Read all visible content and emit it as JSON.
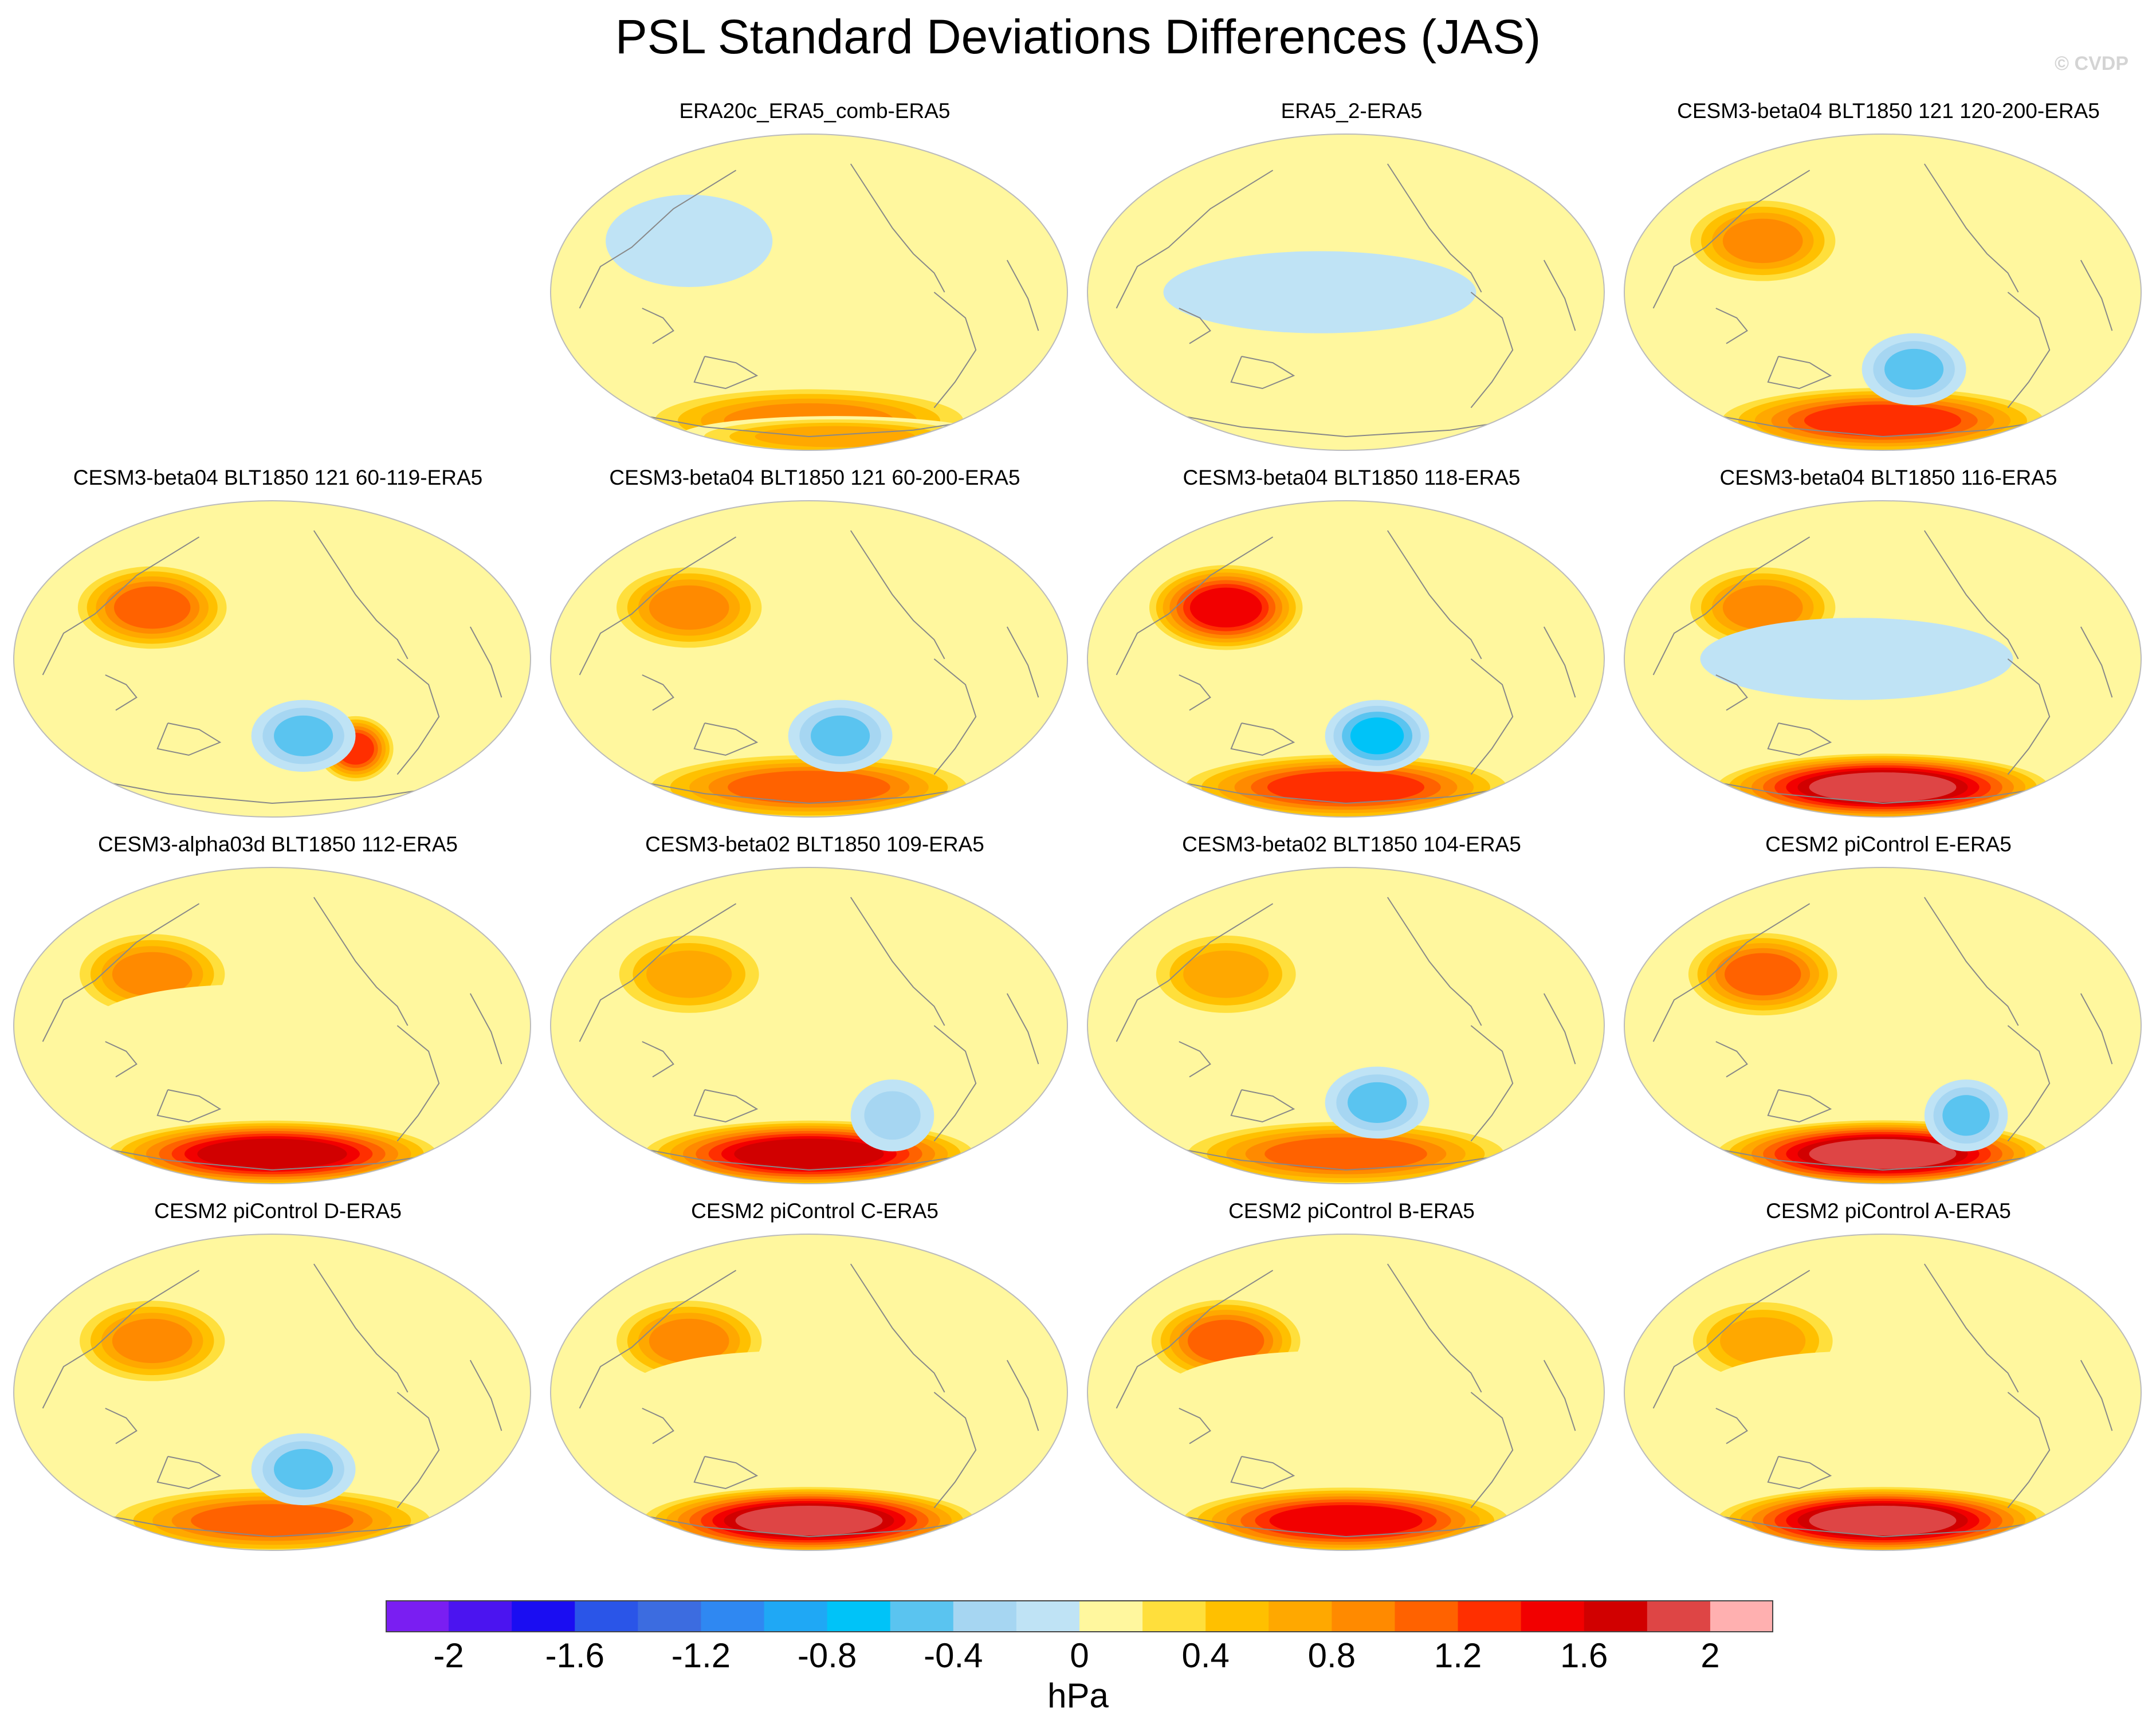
{
  "title": "PSL Standard Deviations Differences (JAS)",
  "credit": "© CVDP",
  "colorbar": {
    "units": "hPa",
    "tick_labels": [
      "-2",
      "-1.6",
      "-1.2",
      "-0.8",
      "-0.4",
      "0",
      "0.4",
      "0.8",
      "1.2",
      "1.6",
      "2"
    ],
    "colors": [
      "#7a1ef2",
      "#4b14f0",
      "#1a0df2",
      "#2a55e8",
      "#3c6ce0",
      "#2f88f2",
      "#1fa8f5",
      "#00c3f8",
      "#5ac4f0",
      "#a6d6f2",
      "#bfe3f5",
      "#fff79e",
      "#ffdf3c",
      "#ffc000",
      "#ffa800",
      "#ff8a00",
      "#ff6200",
      "#ff2f00",
      "#f20000",
      "#d10000",
      "#de4545",
      "#ffb0b0"
    ],
    "color_note": "22 color bins from < -2 to > 2 hPa in 0.2 steps"
  },
  "chart_data": {
    "type": "heatmap",
    "title": "PSL Standard Deviations Differences (JAS)",
    "units": "hPa",
    "value_range": [
      -2,
      2
    ],
    "projection": "global map (Robinson-like), Pacific-centered",
    "panels": [
      {
        "title": "ERA20c_ERA5_comb-ERA5",
        "features": [
          {
            "region": "Southern Ocean",
            "value": 1.0
          },
          {
            "region": "Antarctic margin",
            "value": 0.8
          },
          {
            "region": "North Pacific",
            "value": -0.1
          }
        ]
      },
      {
        "title": "ERA5_2-ERA5",
        "features": [
          {
            "region": "Tropics",
            "value": -0.1
          },
          {
            "region": "Southern Ocean",
            "value": 0.3
          },
          {
            "region": "Northern Hemisphere",
            "value": 0.1
          }
        ]
      },
      {
        "title": "CESM3-beta04 BLT1850 121 120-200-ERA5",
        "features": [
          {
            "region": "North Pacific",
            "value": 0.9
          },
          {
            "region": "Southern Ocean",
            "value": 1.4
          },
          {
            "region": "South Pacific",
            "value": -0.5
          }
        ]
      },
      {
        "title": "CESM3-beta04 BLT1850 121 60-119-ERA5",
        "features": [
          {
            "region": "North Pacific",
            "value": 1.2
          },
          {
            "region": "South Atlantic",
            "value": 1.4
          },
          {
            "region": "South Pacific",
            "value": -0.7
          }
        ]
      },
      {
        "title": "CESM3-beta04 BLT1850 121 60-200-ERA5",
        "features": [
          {
            "region": "North Pacific",
            "value": 1.0
          },
          {
            "region": "Southern Ocean",
            "value": 1.2
          },
          {
            "region": "South Pacific",
            "value": -0.5
          }
        ]
      },
      {
        "title": "CESM3-beta04 BLT1850 118-ERA5",
        "features": [
          {
            "region": "North Pacific",
            "value": 1.6
          },
          {
            "region": "Southern Ocean",
            "value": 1.4
          },
          {
            "region": "South Pacific",
            "value": -0.8
          }
        ]
      },
      {
        "title": "CESM3-beta04 BLT1850 116-ERA5",
        "features": [
          {
            "region": "North Pacific",
            "value": 1.0
          },
          {
            "region": "Southern Ocean",
            "value": 2.0
          },
          {
            "region": "Tropics",
            "value": -0.1
          }
        ]
      },
      {
        "title": "CESM3-alpha03d BLT1850 112-ERA5",
        "features": [
          {
            "region": "North Pacific",
            "value": 1.0
          },
          {
            "region": "Southern Ocean",
            "value": 1.8
          },
          {
            "region": "Tropics",
            "value": 0.1
          }
        ]
      },
      {
        "title": "CESM3-beta02 BLT1850 109-ERA5",
        "features": [
          {
            "region": "North Pacific",
            "value": 0.8
          },
          {
            "region": "Southern Ocean",
            "value": 1.8
          },
          {
            "region": "South Atlantic",
            "value": -0.4
          }
        ]
      },
      {
        "title": "CESM3-beta02 BLT1850 104-ERA5",
        "features": [
          {
            "region": "North Pacific",
            "value": 0.8
          },
          {
            "region": "Southern Ocean",
            "value": 1.2
          },
          {
            "region": "South Pacific",
            "value": -0.7
          }
        ]
      },
      {
        "title": "CESM2 piControl E-ERA5",
        "features": [
          {
            "region": "North Pacific",
            "value": 1.2
          },
          {
            "region": "Southern Ocean",
            "value": 2.0
          },
          {
            "region": "South Atlantic",
            "value": -0.6
          }
        ]
      },
      {
        "title": "CESM2 piControl D-ERA5",
        "features": [
          {
            "region": "North Pacific",
            "value": 1.0
          },
          {
            "region": "Southern Ocean",
            "value": 1.2
          },
          {
            "region": "South Pacific",
            "value": -0.6
          }
        ]
      },
      {
        "title": "CESM2 piControl C-ERA5",
        "features": [
          {
            "region": "North Pacific",
            "value": 1.0
          },
          {
            "region": "Southern Ocean",
            "value": 2.0
          },
          {
            "region": "Tropics",
            "value": 0.1
          }
        ]
      },
      {
        "title": "CESM2 piControl B-ERA5",
        "features": [
          {
            "region": "North Pacific",
            "value": 1.2
          },
          {
            "region": "Southern Ocean",
            "value": 1.6
          },
          {
            "region": "Tropics",
            "value": 0.1
          }
        ]
      },
      {
        "title": "CESM2 piControl A-ERA5",
        "features": [
          {
            "region": "North Pacific",
            "value": 0.8
          },
          {
            "region": "Southern Ocean",
            "value": 2.0
          },
          {
            "region": "Tropics",
            "value": 0.2
          }
        ]
      }
    ]
  }
}
